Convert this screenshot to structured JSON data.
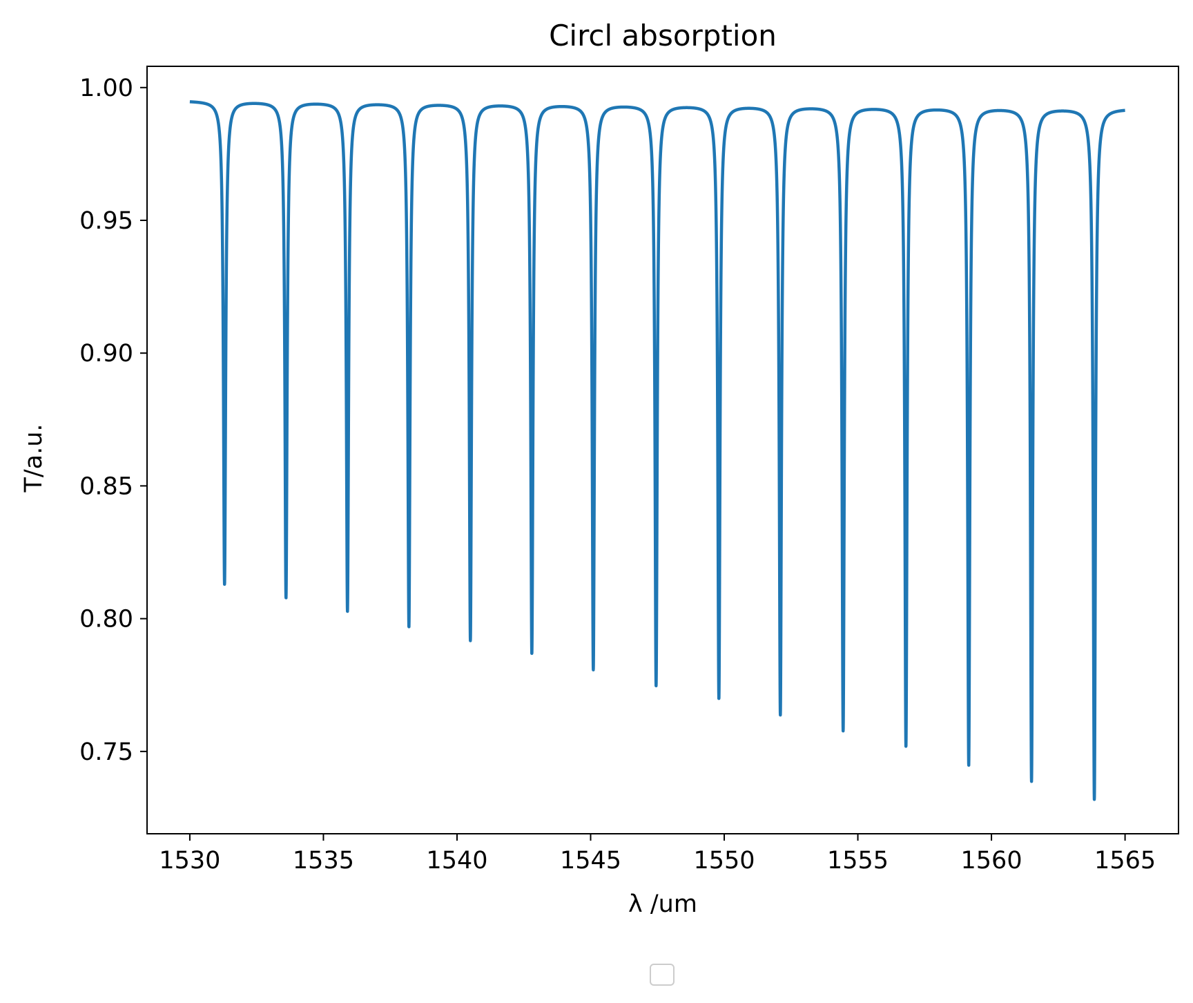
{
  "chart_data": {
    "type": "line",
    "title": "Circl absorption",
    "xlabel": "λ /um",
    "ylabel": "T/a.u.",
    "xlim": [
      1528.4,
      1567.0
    ],
    "ylim": [
      0.719,
      1.008
    ],
    "xticks": [
      "1530",
      "1535",
      "1540",
      "1545",
      "1550",
      "1555",
      "1560",
      "1565"
    ],
    "yticks": [
      "1.00",
      "0.95",
      "0.90",
      "0.85",
      "0.80",
      "0.75"
    ],
    "grid": false,
    "legend": {
      "placement": "bottom-center",
      "entries": []
    },
    "color": "#1f77b4",
    "series": [
      {
        "x_range": [
          1530.0,
          1565.0
        ],
        "resonance_dips": [
          {
            "x": 1531.3,
            "y": 0.813
          },
          {
            "x": 1533.6,
            "y": 0.808
          },
          {
            "x": 1535.9,
            "y": 0.803
          },
          {
            "x": 1538.2,
            "y": 0.797
          },
          {
            "x": 1540.5,
            "y": 0.792
          },
          {
            "x": 1542.8,
            "y": 0.787
          },
          {
            "x": 1545.1,
            "y": 0.781
          },
          {
            "x": 1547.45,
            "y": 0.775
          },
          {
            "x": 1549.8,
            "y": 0.77
          },
          {
            "x": 1552.1,
            "y": 0.764
          },
          {
            "x": 1554.45,
            "y": 0.758
          },
          {
            "x": 1556.8,
            "y": 0.752
          },
          {
            "x": 1559.15,
            "y": 0.745
          },
          {
            "x": 1561.5,
            "y": 0.739
          },
          {
            "x": 1563.85,
            "y": 0.732
          }
        ],
        "baseline_start": 0.995,
        "baseline_end": 0.992
      }
    ]
  }
}
